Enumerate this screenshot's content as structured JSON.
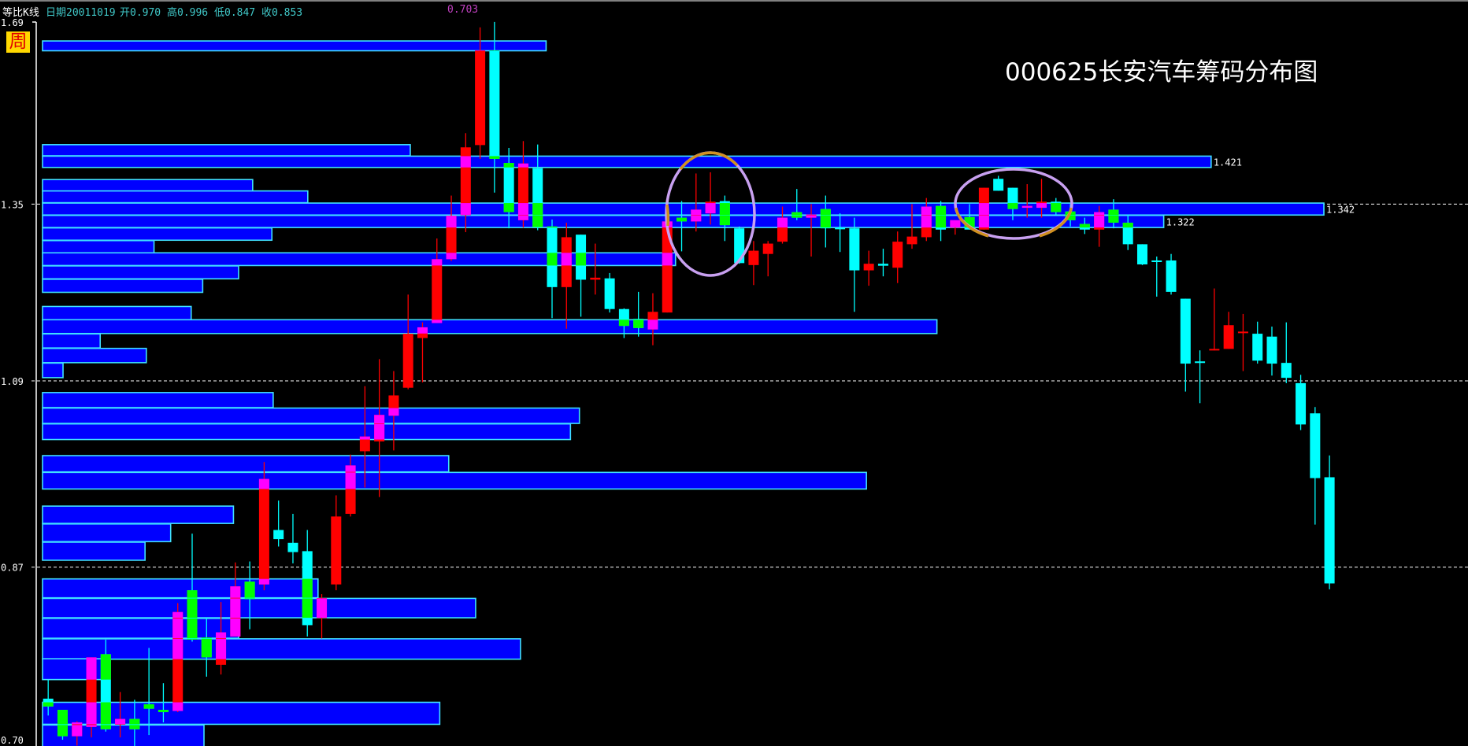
{
  "header": {
    "mode": "等比K线",
    "date": "日期20011019",
    "open": "开0.970",
    "high": "高0.996",
    "low": "低0.847",
    "close": "收0.853",
    "marker": "0.703"
  },
  "period_badge": "周",
  "title": "000625长安汽车筹码分布图",
  "colors": {
    "up": "#ff0000",
    "up_in_chip": "#ff00ff",
    "down": "#00ffff",
    "down_in_chip": "#00ff00",
    "chip_fill": "#0000ff",
    "chip_border": "#40e0ff",
    "annotation": "#c8a0f0",
    "annotation_accent": "#d09020",
    "header_text": "#40c8c8",
    "marker_text": "#c040c0"
  },
  "chart_data": {
    "type": "candlestick-with-chip-distribution",
    "title": "000625长安汽车筹码分布图",
    "y_scale": "log",
    "ylim": [
      0.7,
      1.69
    ],
    "y_ticks": [
      "1.69",
      "1.35",
      "1.09",
      "0.87",
      "0.70"
    ],
    "gridlines": [
      1.35,
      1.09,
      0.87
    ],
    "candle_fields": [
      "open",
      "high",
      "low",
      "close"
    ],
    "candles": [
      [
        0.742,
        0.759,
        0.727,
        0.735
      ],
      [
        0.732,
        0.732,
        0.706,
        0.709
      ],
      [
        0.709,
        0.722,
        0.701,
        0.721
      ],
      [
        0.717,
        0.78,
        0.708,
        0.78
      ],
      [
        0.783,
        0.797,
        0.713,
        0.715
      ],
      [
        0.719,
        0.748,
        0.708,
        0.724
      ],
      [
        0.724,
        0.741,
        0.7,
        0.715
      ],
      [
        0.737,
        0.789,
        0.71,
        0.733
      ],
      [
        0.732,
        0.756,
        0.721,
        0.73
      ],
      [
        0.731,
        0.833,
        0.73,
        0.824
      ],
      [
        0.846,
        0.906,
        0.795,
        0.797
      ],
      [
        0.799,
        0.818,
        0.762,
        0.78
      ],
      [
        0.773,
        0.834,
        0.764,
        0.804
      ],
      [
        0.8,
        0.875,
        0.8,
        0.85
      ],
      [
        0.855,
        0.876,
        0.807,
        0.837
      ],
      [
        0.852,
        0.988,
        0.846,
        0.968
      ],
      [
        0.91,
        0.943,
        0.892,
        0.9
      ],
      [
        0.896,
        0.928,
        0.874,
        0.886
      ],
      [
        0.887,
        0.91,
        0.8,
        0.811
      ],
      [
        0.818,
        0.842,
        0.798,
        0.838
      ],
      [
        0.852,
        0.949,
        0.846,
        0.925
      ],
      [
        0.928,
        0.997,
        0.925,
        0.984
      ],
      [
        1.001,
        1.083,
        0.958,
        1.019
      ],
      [
        1.013,
        1.119,
        0.947,
        1.046
      ],
      [
        1.045,
        1.103,
        1.002,
        1.071
      ],
      [
        1.081,
        1.21,
        1.079,
        1.154
      ],
      [
        1.148,
        1.17,
        1.088,
        1.163
      ],
      [
        1.169,
        1.295,
        1.169,
        1.263
      ],
      [
        1.263,
        1.364,
        1.26,
        1.331
      ],
      [
        1.332,
        1.471,
        1.305,
        1.446
      ],
      [
        1.45,
        1.672,
        1.426,
        1.626
      ],
      [
        1.626,
        1.683,
        1.369,
        1.426
      ],
      [
        1.419,
        1.445,
        1.311,
        1.337
      ],
      [
        1.324,
        1.457,
        1.312,
        1.418
      ],
      [
        1.41,
        1.451,
        1.308,
        1.313
      ],
      [
        1.314,
        1.325,
        1.176,
        1.221
      ],
      [
        1.221,
        1.32,
        1.161,
        1.297
      ],
      [
        1.301,
        1.301,
        1.178,
        1.232
      ],
      [
        1.232,
        1.287,
        1.21,
        1.235
      ],
      [
        1.234,
        1.242,
        1.184,
        1.189
      ],
      [
        1.189,
        1.19,
        1.148,
        1.165
      ],
      [
        1.175,
        1.214,
        1.15,
        1.162
      ],
      [
        1.16,
        1.212,
        1.138,
        1.185
      ],
      [
        1.184,
        1.336,
        1.184,
        1.322
      ],
      [
        1.328,
        1.355,
        1.275,
        1.322
      ],
      [
        1.322,
        1.401,
        1.306,
        1.341
      ],
      [
        1.335,
        1.403,
        1.317,
        1.354
      ],
      [
        1.355,
        1.364,
        1.291,
        1.316
      ],
      [
        1.311,
        1.314,
        1.256,
        1.257
      ],
      [
        1.254,
        1.291,
        1.224,
        1.276
      ],
      [
        1.271,
        1.291,
        1.237,
        1.287
      ],
      [
        1.29,
        1.346,
        1.287,
        1.328
      ],
      [
        1.337,
        1.375,
        1.324,
        1.328
      ],
      [
        1.328,
        1.35,
        1.267,
        1.333
      ],
      [
        1.342,
        1.364,
        1.281,
        1.311
      ],
      [
        1.312,
        1.335,
        1.274,
        1.311
      ],
      [
        1.311,
        1.328,
        1.185,
        1.246
      ],
      [
        1.246,
        1.276,
        1.223,
        1.256
      ],
      [
        1.256,
        1.279,
        1.237,
        1.253
      ],
      [
        1.25,
        1.306,
        1.227,
        1.29
      ],
      [
        1.286,
        1.35,
        1.279,
        1.298
      ],
      [
        1.297,
        1.36,
        1.291,
        1.346
      ],
      [
        1.347,
        1.355,
        1.291,
        1.309
      ],
      [
        1.312,
        1.324,
        1.301,
        1.324
      ],
      [
        1.329,
        1.35,
        1.309,
        1.309
      ],
      [
        1.309,
        1.377,
        1.309,
        1.377
      ],
      [
        1.392,
        1.397,
        1.372,
        1.372
      ],
      [
        1.377,
        1.377,
        1.324,
        1.342
      ],
      [
        1.344,
        1.383,
        1.328,
        1.347
      ],
      [
        1.344,
        1.392,
        1.328,
        1.354
      ],
      [
        1.354,
        1.36,
        1.332,
        1.337
      ],
      [
        1.338,
        1.35,
        1.314,
        1.324
      ],
      [
        1.318,
        1.328,
        1.302,
        1.309
      ],
      [
        1.309,
        1.347,
        1.282,
        1.337
      ],
      [
        1.341,
        1.358,
        1.311,
        1.32
      ],
      [
        1.32,
        1.333,
        1.277,
        1.286
      ],
      [
        1.286,
        1.286,
        1.254,
        1.255
      ],
      [
        1.261,
        1.267,
        1.207,
        1.259
      ],
      [
        1.261,
        1.271,
        1.21,
        1.214
      ],
      [
        1.204,
        1.204,
        1.076,
        1.113
      ],
      [
        1.116,
        1.131,
        1.061,
        1.114
      ],
      [
        1.131,
        1.219,
        1.131,
        1.133
      ],
      [
        1.133,
        1.185,
        1.133,
        1.166
      ],
      [
        1.155,
        1.182,
        1.103,
        1.157
      ],
      [
        1.154,
        1.171,
        1.113,
        1.117
      ],
      [
        1.15,
        1.164,
        1.097,
        1.113
      ],
      [
        1.114,
        1.17,
        1.087,
        1.094
      ],
      [
        1.087,
        1.098,
        1.027,
        1.034
      ],
      [
        1.048,
        1.056,
        0.916,
        0.969
      ],
      [
        0.97,
        0.996,
        0.847,
        0.853
      ]
    ],
    "chip_fields": [
      "price",
      "relative_amount_percent"
    ],
    "chips": [
      [
        1.635,
        39.3
      ],
      [
        1.441,
        28.7
      ],
      [
        1.421,
        91.2
      ],
      [
        1.381,
        16.4
      ],
      [
        1.362,
        20.7
      ],
      [
        1.342,
        100
      ],
      [
        1.322,
        87.5
      ],
      [
        1.302,
        17.9
      ],
      [
        1.282,
        8.7
      ],
      [
        1.263,
        49.4
      ],
      [
        1.243,
        15.3
      ],
      [
        1.223,
        12.5
      ],
      [
        1.183,
        11.6
      ],
      [
        1.164,
        69.8
      ],
      [
        1.144,
        4.5
      ],
      [
        1.124,
        8.1
      ],
      [
        1.104,
        1.6
      ],
      [
        1.065,
        18.0
      ],
      [
        1.045,
        41.9
      ],
      [
        1.025,
        41.2
      ],
      [
        0.986,
        31.7
      ],
      [
        0.966,
        64.3
      ],
      [
        0.927,
        14.9
      ],
      [
        0.907,
        10.0
      ],
      [
        0.887,
        8.0
      ],
      [
        0.848,
        21.5
      ],
      [
        0.828,
        33.8
      ],
      [
        0.808,
        15.3
      ],
      [
        0.788,
        37.3
      ],
      [
        0.769,
        4.6
      ],
      [
        0.729,
        31.0
      ],
      [
        0.709,
        12.6
      ]
    ],
    "chip_labels": [
      {
        "price": 1.421,
        "text": "1.421"
      },
      {
        "price": 1.342,
        "text": "1.342"
      },
      {
        "price": 1.322,
        "text": "1.322"
      }
    ]
  }
}
